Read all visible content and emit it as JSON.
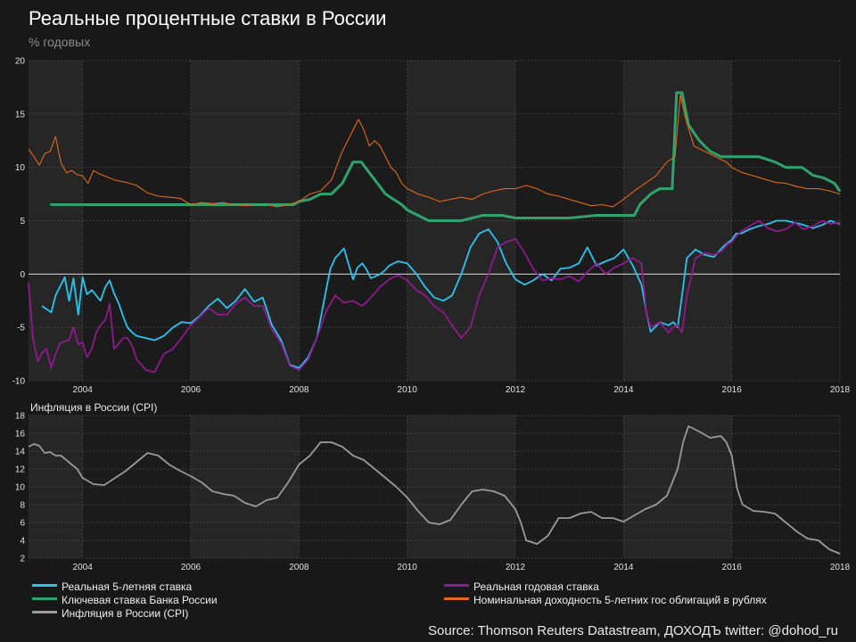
{
  "header": {
    "title": "Реальные процентные ставки в России",
    "subtitle": "% годовых"
  },
  "colors": {
    "real5y": "#29c4f0",
    "real1y": "#8e1a8e",
    "keyRate": "#2fa36b",
    "nominal5y": "#e0691a",
    "cpi": "#9a9a9a"
  },
  "legend": {
    "real5y": "Реальная 5-летняя ставка",
    "real1y": "Реальная годовая ставка",
    "keyRate": "Ключевая ставка Банка России",
    "nominal5y": "Номинальная доходность 5-летних гос облигаций в рублях",
    "cpi": "Инфляция в России (CPI)"
  },
  "source": "Source: Thomson Reuters Datastream, ДОХОДЪ twitter: @dohod_ru",
  "chart_data": [
    {
      "type": "line",
      "xlabel": "",
      "ylabel": "% годовых",
      "xlim": [
        2003.0,
        2018.0
      ],
      "ylim": [
        -10,
        20
      ],
      "x_ticks": [
        "2004",
        "2006",
        "2008",
        "2010",
        "2012",
        "2014",
        "2016",
        "2018"
      ],
      "y_ticks": [
        "-10",
        "-5",
        "0",
        "5",
        "10",
        "15",
        "20"
      ],
      "grid": true,
      "series": [
        {
          "name": "Реальная 5-летняя ставка",
          "key": "real5y",
          "x": [
            2003.25,
            2003.42,
            2003.5,
            2003.58,
            2003.67,
            2003.75,
            2003.83,
            2003.92,
            2004.0,
            2004.08,
            2004.17,
            2004.25,
            2004.33,
            2004.42,
            2004.5,
            2004.58,
            2004.67,
            2004.75,
            2004.83,
            2004.92,
            2005.0,
            2005.17,
            2005.33,
            2005.5,
            2005.67,
            2005.83,
            2006.0,
            2006.17,
            2006.33,
            2006.5,
            2006.67,
            2006.83,
            2007.0,
            2007.17,
            2007.33,
            2007.5,
            2007.67,
            2007.83,
            2008.0,
            2008.17,
            2008.33,
            2008.5,
            2008.58,
            2008.67,
            2008.83,
            2009.0,
            2009.08,
            2009.17,
            2009.25,
            2009.33,
            2009.42,
            2009.5,
            2009.58,
            2009.67,
            2009.83,
            2010.0,
            2010.17,
            2010.33,
            2010.5,
            2010.67,
            2010.83,
            2011.0,
            2011.17,
            2011.33,
            2011.5,
            2011.67,
            2011.83,
            2012.0,
            2012.17,
            2012.33,
            2012.5,
            2012.67,
            2012.83,
            2013.0,
            2013.17,
            2013.33,
            2013.5,
            2013.67,
            2013.83,
            2014.0,
            2014.17,
            2014.33,
            2014.42,
            2014.5,
            2014.67,
            2014.83,
            2014.92,
            2015.0,
            2015.08,
            2015.17,
            2015.33,
            2015.5,
            2015.67,
            2015.83,
            2015.92,
            2016.0,
            2016.08,
            2016.17,
            2016.33,
            2016.5,
            2016.67,
            2016.83,
            2017.0,
            2017.17,
            2017.33,
            2017.5,
            2017.67,
            2017.83,
            2017.92,
            2018.0
          ],
          "values": [
            -3.0,
            -3.6,
            -2.0,
            -1.2,
            -0.3,
            -2.5,
            -0.4,
            -3.8,
            -0.3,
            -1.9,
            -1.5,
            -2.0,
            -2.5,
            -1.2,
            -0.6,
            -1.8,
            -2.8,
            -4.0,
            -5.0,
            -5.5,
            -5.8,
            -6.0,
            -6.2,
            -5.8,
            -5.0,
            -4.5,
            -4.6,
            -3.9,
            -3.0,
            -2.3,
            -3.2,
            -2.5,
            -1.4,
            -2.6,
            -2.2,
            -4.8,
            -6.2,
            -8.5,
            -8.8,
            -7.8,
            -6.0,
            -1.5,
            0.5,
            1.5,
            2.4,
            -0.5,
            0.6,
            1.0,
            0.4,
            -0.4,
            -0.2,
            0.0,
            0.3,
            0.8,
            1.2,
            1.0,
            0.0,
            -1.2,
            -2.2,
            -2.5,
            -2.0,
            0.0,
            2.5,
            3.8,
            4.2,
            3.0,
            1.0,
            -0.5,
            -1.0,
            -0.6,
            0.0,
            -0.6,
            0.5,
            0.6,
            1.0,
            2.5,
            0.8,
            1.2,
            1.5,
            2.3,
            0.8,
            -1.0,
            -3.5,
            -5.4,
            -4.5,
            -4.8,
            -4.5,
            -5.0,
            -2.0,
            1.5,
            2.3,
            1.8,
            1.6,
            2.5,
            2.9,
            3.2,
            3.8,
            3.8,
            4.2,
            4.5,
            4.7,
            5.0,
            5.0,
            4.8,
            4.6,
            4.3,
            4.6,
            5.0,
            4.8,
            4.7
          ]
        },
        {
          "name": "Реальная годовая ставка",
          "key": "real1y",
          "x": [
            2003.0,
            2003.08,
            2003.17,
            2003.25,
            2003.33,
            2003.42,
            2003.5,
            2003.58,
            2003.67,
            2003.75,
            2003.83,
            2003.92,
            2004.0,
            2004.08,
            2004.17,
            2004.25,
            2004.33,
            2004.42,
            2004.5,
            2004.58,
            2004.67,
            2004.75,
            2004.83,
            2004.92,
            2005.0,
            2005.17,
            2005.33,
            2005.5,
            2005.67,
            2005.83,
            2006.0,
            2006.17,
            2006.33,
            2006.5,
            2006.67,
            2006.83,
            2007.0,
            2007.17,
            2007.33,
            2007.5,
            2007.67,
            2007.83,
            2008.0,
            2008.17,
            2008.33,
            2008.5,
            2008.67,
            2008.83,
            2009.0,
            2009.17,
            2009.33,
            2009.5,
            2009.67,
            2009.83,
            2010.0,
            2010.17,
            2010.33,
            2010.5,
            2010.67,
            2010.83,
            2011.0,
            2011.17,
            2011.33,
            2011.5,
            2011.67,
            2011.83,
            2012.0,
            2012.17,
            2012.33,
            2012.5,
            2012.67,
            2012.83,
            2013.0,
            2013.17,
            2013.33,
            2013.5,
            2013.67,
            2013.83,
            2014.0,
            2014.17,
            2014.33,
            2014.42,
            2014.5,
            2014.67,
            2014.83,
            2014.92,
            2015.0,
            2015.08,
            2015.17,
            2015.33,
            2015.5,
            2015.67,
            2015.83,
            2015.92,
            2016.0,
            2016.08,
            2016.17,
            2016.33,
            2016.5,
            2016.67,
            2016.83,
            2017.0,
            2017.17,
            2017.33,
            2017.5,
            2017.67,
            2017.83,
            2017.92,
            2018.0
          ],
          "values": [
            -0.8,
            -6.0,
            -8.2,
            -7.4,
            -7.0,
            -8.8,
            -7.5,
            -6.5,
            -6.3,
            -6.2,
            -5.0,
            -6.6,
            -6.4,
            -7.8,
            -7.0,
            -5.5,
            -4.8,
            -4.3,
            -2.8,
            -7.0,
            -6.5,
            -6.0,
            -6.0,
            -6.8,
            -8.0,
            -9.0,
            -9.2,
            -7.5,
            -7.0,
            -6.0,
            -4.8,
            -4.0,
            -3.2,
            -3.8,
            -3.8,
            -2.8,
            -2.2,
            -3.0,
            -3.0,
            -5.2,
            -6.5,
            -8.6,
            -9.0,
            -8.0,
            -6.0,
            -3.5,
            -2.0,
            -2.7,
            -2.5,
            -3.0,
            -2.2,
            -1.2,
            -0.5,
            -0.1,
            -0.6,
            -1.5,
            -2.0,
            -3.0,
            -3.6,
            -4.8,
            -6.0,
            -5.0,
            -2.0,
            0.0,
            2.5,
            3.0,
            3.3,
            2.0,
            0.5,
            -0.6,
            -0.4,
            -0.5,
            -0.2,
            -0.7,
            0.2,
            1.0,
            0.0,
            0.6,
            1.0,
            1.5,
            1.0,
            -3.5,
            -5.0,
            -4.5,
            -5.5,
            -5.0,
            -4.8,
            -5.5,
            -2.0,
            1.5,
            2.0,
            1.8,
            2.2,
            2.8,
            3.0,
            3.5,
            4.0,
            4.5,
            5.0,
            4.3,
            4.0,
            4.2,
            4.8,
            4.2,
            4.5,
            5.0,
            4.7,
            4.8,
            4.6
          ]
        },
        {
          "name": "Ключевая ставка Банка России",
          "key": "keyRate",
          "x": [
            2003.4,
            2007.9,
            2008.0,
            2008.2,
            2008.4,
            2008.6,
            2008.8,
            2009.0,
            2009.15,
            2009.3,
            2009.45,
            2009.6,
            2009.75,
            2009.9,
            2010.0,
            2010.2,
            2010.4,
            2010.5,
            2011.0,
            2011.2,
            2011.4,
            2011.75,
            2012.0,
            2012.5,
            2013.0,
            2013.5,
            2014.0,
            2014.2,
            2014.3,
            2014.5,
            2014.67,
            2014.9,
            2014.98,
            2015.08,
            2015.2,
            2015.4,
            2015.6,
            2015.8,
            2016.0,
            2016.5,
            2016.8,
            2017.0,
            2017.3,
            2017.5,
            2017.7,
            2017.9,
            2018.0
          ],
          "values": [
            6.5,
            6.5,
            6.8,
            7.0,
            7.5,
            7.5,
            8.5,
            10.5,
            10.5,
            9.5,
            8.5,
            7.5,
            7.0,
            6.5,
            6.0,
            5.5,
            5.0,
            5.0,
            5.0,
            5.25,
            5.5,
            5.5,
            5.25,
            5.25,
            5.25,
            5.5,
            5.5,
            5.5,
            6.5,
            7.5,
            8.0,
            8.0,
            17.0,
            17.0,
            14.0,
            12.5,
            11.5,
            11.0,
            11.0,
            11.0,
            10.5,
            10.0,
            10.0,
            9.25,
            9.0,
            8.5,
            7.75
          ]
        },
        {
          "name": "Номинальная доходность 5-летних гос облигаций в рублях",
          "key": "nominal5y",
          "x": [
            2003.0,
            2003.1,
            2003.2,
            2003.3,
            2003.4,
            2003.5,
            2003.6,
            2003.7,
            2003.8,
            2003.9,
            2004.0,
            2004.1,
            2004.2,
            2004.3,
            2004.4,
            2004.5,
            2004.6,
            2004.8,
            2005.0,
            2005.2,
            2005.4,
            2005.6,
            2005.8,
            2006.0,
            2006.2,
            2006.4,
            2006.6,
            2006.8,
            2007.0,
            2007.2,
            2007.4,
            2007.6,
            2007.8,
            2008.0,
            2008.2,
            2008.4,
            2008.6,
            2008.8,
            2009.0,
            2009.1,
            2009.2,
            2009.3,
            2009.4,
            2009.5,
            2009.6,
            2009.7,
            2009.8,
            2009.9,
            2010.0,
            2010.2,
            2010.4,
            2010.6,
            2010.8,
            2011.0,
            2011.2,
            2011.4,
            2011.6,
            2011.8,
            2012.0,
            2012.2,
            2012.4,
            2012.6,
            2012.8,
            2013.0,
            2013.2,
            2013.4,
            2013.6,
            2013.8,
            2014.0,
            2014.2,
            2014.4,
            2014.6,
            2014.8,
            2014.95,
            2015.05,
            2015.15,
            2015.3,
            2015.5,
            2015.7,
            2015.9,
            2016.0,
            2016.2,
            2016.4,
            2016.6,
            2016.8,
            2017.0,
            2017.2,
            2017.4,
            2017.6,
            2017.8,
            2018.0
          ],
          "values": [
            11.7,
            11.0,
            10.2,
            11.3,
            11.5,
            12.9,
            10.4,
            9.5,
            9.7,
            9.3,
            9.2,
            8.5,
            9.7,
            9.4,
            9.2,
            9.0,
            8.8,
            8.6,
            8.3,
            7.6,
            7.3,
            7.2,
            7.1,
            6.5,
            6.7,
            6.6,
            6.7,
            6.5,
            6.4,
            6.5,
            6.5,
            6.3,
            6.5,
            6.8,
            7.5,
            7.8,
            8.8,
            11.5,
            13.5,
            14.5,
            13.5,
            12.0,
            12.5,
            12.0,
            11.0,
            10.0,
            9.5,
            8.5,
            8.0,
            7.5,
            7.2,
            6.8,
            7.0,
            7.2,
            7.0,
            7.5,
            7.8,
            8.0,
            8.0,
            8.3,
            8.0,
            7.5,
            7.3,
            7.0,
            6.7,
            6.4,
            6.5,
            6.3,
            7.0,
            7.8,
            8.5,
            9.2,
            10.5,
            11.0,
            16.8,
            14.5,
            12.0,
            11.5,
            11.0,
            10.5,
            10.0,
            9.5,
            9.2,
            8.9,
            8.6,
            8.5,
            8.2,
            8.0,
            8.0,
            7.8,
            7.5
          ]
        }
      ]
    },
    {
      "type": "line",
      "title": "Инфляция в России (CPI)",
      "xlim": [
        2003.0,
        2018.0
      ],
      "ylim": [
        2,
        18
      ],
      "x_ticks": [
        "2004",
        "2006",
        "2008",
        "2010",
        "2012",
        "2014",
        "2016",
        "2018"
      ],
      "y_ticks": [
        "2",
        "4",
        "6",
        "8",
        "10",
        "12",
        "14",
        "16",
        "18"
      ],
      "grid": true,
      "series": [
        {
          "name": "Инфляция в России (CPI)",
          "key": "cpi",
          "x": [
            2003.0,
            2003.1,
            2003.2,
            2003.3,
            2003.4,
            2003.5,
            2003.6,
            2003.7,
            2003.8,
            2003.9,
            2004.0,
            2004.2,
            2004.4,
            2004.6,
            2004.8,
            2005.0,
            2005.2,
            2005.4,
            2005.6,
            2005.8,
            2006.0,
            2006.2,
            2006.4,
            2006.6,
            2006.8,
            2007.0,
            2007.2,
            2007.4,
            2007.6,
            2007.8,
            2008.0,
            2008.2,
            2008.4,
            2008.6,
            2008.8,
            2009.0,
            2009.2,
            2009.4,
            2009.6,
            2009.8,
            2010.0,
            2010.2,
            2010.4,
            2010.6,
            2010.8,
            2011.0,
            2011.2,
            2011.4,
            2011.6,
            2011.8,
            2012.0,
            2012.1,
            2012.2,
            2012.4,
            2012.6,
            2012.8,
            2013.0,
            2013.2,
            2013.4,
            2013.6,
            2013.8,
            2014.0,
            2014.2,
            2014.4,
            2014.6,
            2014.8,
            2015.0,
            2015.1,
            2015.2,
            2015.4,
            2015.6,
            2015.8,
            2015.9,
            2016.0,
            2016.1,
            2016.2,
            2016.4,
            2016.6,
            2016.8,
            2017.0,
            2017.2,
            2017.4,
            2017.6,
            2017.8,
            2018.0
          ],
          "values": [
            14.5,
            14.8,
            14.6,
            13.8,
            13.9,
            13.5,
            13.5,
            13.0,
            12.5,
            12.0,
            11.0,
            10.3,
            10.2,
            11.0,
            11.8,
            12.8,
            13.8,
            13.5,
            12.5,
            11.8,
            11.2,
            10.5,
            9.5,
            9.2,
            9.0,
            8.2,
            7.8,
            8.5,
            8.8,
            10.5,
            12.5,
            13.5,
            15.0,
            15.0,
            14.5,
            13.5,
            13.0,
            12.0,
            11.0,
            10.0,
            8.8,
            7.3,
            6.0,
            5.8,
            6.3,
            8.0,
            9.5,
            9.7,
            9.5,
            9.0,
            7.5,
            6.0,
            4.0,
            3.6,
            4.5,
            6.5,
            6.5,
            7.0,
            7.2,
            6.5,
            6.5,
            6.1,
            6.8,
            7.5,
            8.0,
            9.0,
            12.0,
            15.0,
            16.8,
            16.2,
            15.5,
            15.7,
            15.0,
            13.5,
            9.8,
            8.0,
            7.3,
            7.2,
            7.0,
            6.0,
            5.0,
            4.2,
            4.0,
            3.0,
            2.5
          ]
        }
      ]
    }
  ]
}
